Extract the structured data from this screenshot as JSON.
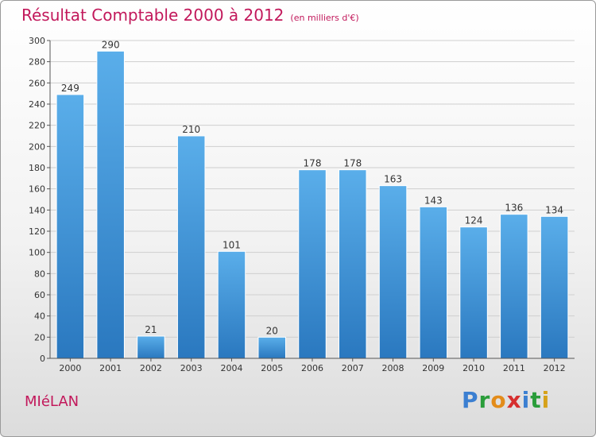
{
  "header": {
    "title": "Résultat Comptable 2000 à 2012",
    "unit": "(en milliers d'€)"
  },
  "footer": {
    "commune": "MIéLAN",
    "logo_letters": [
      "P",
      "r",
      "o",
      "x",
      "i",
      "t",
      "i"
    ],
    "logo_colors": [
      "#3b7fd1",
      "#2a9d3a",
      "#e38c1a",
      "#d62f2f",
      "#3b7fd1",
      "#2a9d3a",
      "#d6a21a"
    ]
  },
  "chart_data": {
    "type": "bar",
    "categories": [
      "2000",
      "2001",
      "2002",
      "2003",
      "2004",
      "2005",
      "2006",
      "2007",
      "2008",
      "2009",
      "2010",
      "2011",
      "2012"
    ],
    "values": [
      249,
      290,
      21,
      210,
      101,
      20,
      178,
      178,
      163,
      143,
      124,
      136,
      134
    ],
    "ylim": [
      0,
      300
    ],
    "yticks": [
      0,
      20,
      40,
      60,
      80,
      100,
      120,
      140,
      160,
      180,
      200,
      220,
      240,
      260,
      280,
      300
    ],
    "grid": true,
    "bar_color": "#3a8fd8"
  }
}
